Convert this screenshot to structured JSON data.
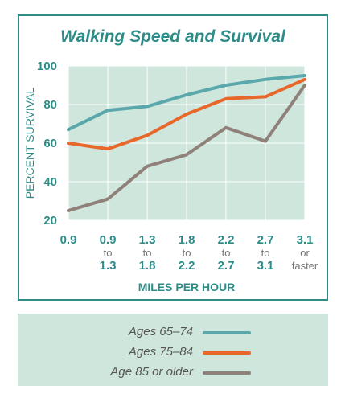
{
  "chart_data": {
    "type": "line",
    "title": "Walking Speed and Survival",
    "xlabel": "MILES PER HOUR",
    "ylabel": "PERCENT SURVIVAL",
    "ylim": [
      20,
      100
    ],
    "yticks": [
      20,
      40,
      60,
      80,
      100
    ],
    "grid": true,
    "categories": [
      [
        "0.9"
      ],
      [
        "0.9",
        "to",
        "1.3"
      ],
      [
        "1.3",
        "to",
        "1.8"
      ],
      [
        "1.8",
        "to",
        "2.2"
      ],
      [
        "2.2",
        "to",
        "2.7"
      ],
      [
        "2.7",
        "to",
        "3.1"
      ],
      [
        "3.1",
        "or",
        "faster"
      ]
    ],
    "series": [
      {
        "name": "Ages 65–74",
        "color": "#5aa8ac",
        "values": [
          67,
          77,
          79,
          85,
          90,
          93,
          95
        ]
      },
      {
        "name": "Ages 75–84",
        "color": "#e8672a",
        "values": [
          60,
          57,
          64,
          75,
          83,
          84,
          93
        ]
      },
      {
        "name": "Age 85 or older",
        "color": "#8f8179",
        "values": [
          25,
          31,
          48,
          54,
          68,
          61,
          90
        ]
      }
    ],
    "legend_position": "bottom"
  },
  "colors": {
    "frame": "#2e8c88",
    "plot_background": "#cfe6dc",
    "axis_text": "#2e8c88",
    "tick_sublabel": "#777777"
  }
}
